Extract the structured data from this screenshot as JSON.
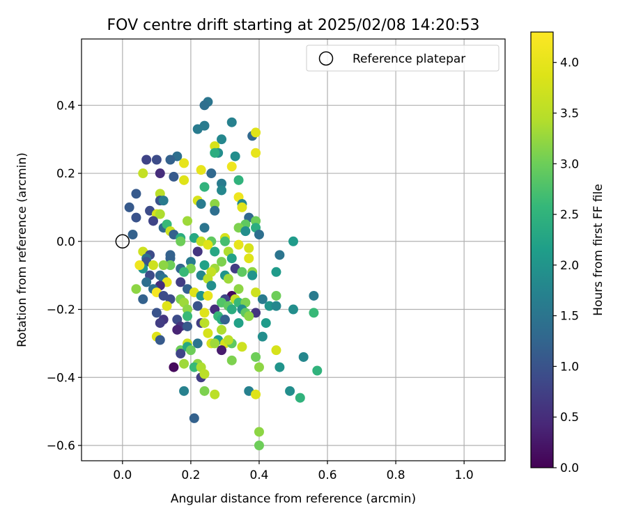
{
  "chart_data": {
    "type": "scatter",
    "title": "FOV centre drift starting at 2025/02/08 14:20:53",
    "xlabel": "Angular distance from reference (arcmin)",
    "ylabel": "Rotation from reference (arcmin)",
    "xlim": [
      -0.12,
      1.12
    ],
    "ylim": [
      -0.645,
      0.595
    ],
    "xticks": [
      0.0,
      0.2,
      0.4,
      0.6,
      0.8,
      1.0
    ],
    "xtick_labels": [
      "0.0",
      "0.2",
      "0.4",
      "0.6",
      "0.8",
      "1.0"
    ],
    "yticks": [
      -0.6,
      -0.4,
      -0.2,
      0.0,
      0.2,
      0.4
    ],
    "ytick_labels": [
      "−0.6",
      "−0.4",
      "−0.2",
      "0.0",
      "0.2",
      "0.4"
    ],
    "grid": true,
    "legend": {
      "position": "top-right",
      "label": "Reference platepar"
    },
    "reference_point": {
      "x": 0.0,
      "y": 0.0
    },
    "colorbar": {
      "label": "Hours from first FF file",
      "colormap": "viridis",
      "range": [
        0.0,
        4.3
      ],
      "ticks": [
        0.0,
        0.5,
        1.0,
        1.5,
        2.0,
        2.5,
        3.0,
        3.5,
        4.0
      ],
      "tick_labels": [
        "0.0",
        "0.5",
        "1.0",
        "1.5",
        "2.0",
        "2.5",
        "3.0",
        "3.5",
        "4.0"
      ]
    },
    "points": [
      [
        0.25,
        0.41,
        1.5
      ],
      [
        0.24,
        0.4,
        1.4
      ],
      [
        0.32,
        0.35,
        1.7
      ],
      [
        0.24,
        0.34,
        1.6
      ],
      [
        0.22,
        0.33,
        1.6
      ],
      [
        0.29,
        0.3,
        1.8
      ],
      [
        0.38,
        0.31,
        1.3
      ],
      [
        0.39,
        0.32,
        3.9
      ],
      [
        0.27,
        0.28,
        3.8
      ],
      [
        0.28,
        0.26,
        1.9
      ],
      [
        0.27,
        0.26,
        2.4
      ],
      [
        0.33,
        0.25,
        1.9
      ],
      [
        0.39,
        0.26,
        4.0
      ],
      [
        0.16,
        0.25,
        1.4
      ],
      [
        0.14,
        0.24,
        1.2
      ],
      [
        0.07,
        0.24,
        0.8
      ],
      [
        0.1,
        0.24,
        0.9
      ],
      [
        0.18,
        0.23,
        4.0
      ],
      [
        0.23,
        0.21,
        4.0
      ],
      [
        0.32,
        0.22,
        4.1
      ],
      [
        0.06,
        0.2,
        3.6
      ],
      [
        0.11,
        0.2,
        0.5
      ],
      [
        0.26,
        0.2,
        1.3
      ],
      [
        0.15,
        0.19,
        1.1
      ],
      [
        0.18,
        0.18,
        3.9
      ],
      [
        0.34,
        0.18,
        2.5
      ],
      [
        0.29,
        0.17,
        1.6
      ],
      [
        0.24,
        0.16,
        2.5
      ],
      [
        0.29,
        0.15,
        1.8
      ],
      [
        0.34,
        0.13,
        4.1
      ],
      [
        0.04,
        0.14,
        1.1
      ],
      [
        0.11,
        0.14,
        3.5
      ],
      [
        0.11,
        0.12,
        1.0
      ],
      [
        0.12,
        0.12,
        1.6
      ],
      [
        0.22,
        0.12,
        3.8
      ],
      [
        0.23,
        0.11,
        1.6
      ],
      [
        0.27,
        0.11,
        3.2
      ],
      [
        0.35,
        0.11,
        1.8
      ],
      [
        0.35,
        0.1,
        3.9
      ],
      [
        0.02,
        0.1,
        1.1
      ],
      [
        0.08,
        0.09,
        0.9
      ],
      [
        0.27,
        0.09,
        1.4
      ],
      [
        0.04,
        0.07,
        1.0
      ],
      [
        0.1,
        0.08,
        3.8
      ],
      [
        0.11,
        0.08,
        3.4
      ],
      [
        0.37,
        0.07,
        1.3
      ],
      [
        0.09,
        0.06,
        0.8
      ],
      [
        0.19,
        0.06,
        3.3
      ],
      [
        0.36,
        0.05,
        2.9
      ],
      [
        0.39,
        0.06,
        3.0
      ],
      [
        0.12,
        0.04,
        1.3
      ],
      [
        0.13,
        0.05,
        2.6
      ],
      [
        0.34,
        0.04,
        3.1
      ],
      [
        0.39,
        0.04,
        2.4
      ],
      [
        0.14,
        0.03,
        3.7
      ],
      [
        0.24,
        0.04,
        1.5
      ],
      [
        0.36,
        0.03,
        1.9
      ],
      [
        0.4,
        0.02,
        1.4
      ],
      [
        0.03,
        0.02,
        1.2
      ],
      [
        0.15,
        0.02,
        1.2
      ],
      [
        0.17,
        0.01,
        2.4
      ],
      [
        0.21,
        0.01,
        2.3
      ],
      [
        0.3,
        0.01,
        3.8
      ],
      [
        0.17,
        0.0,
        3.0
      ],
      [
        0.23,
        0.0,
        3.6
      ],
      [
        0.26,
        0.0,
        2.9
      ],
      [
        0.3,
        0.0,
        2.7
      ],
      [
        0.34,
        -0.01,
        4.0
      ],
      [
        0.5,
        0.0,
        2.1
      ],
      [
        0.25,
        -0.01,
        3.9
      ],
      [
        0.06,
        -0.03,
        3.7
      ],
      [
        0.08,
        -0.04,
        0.9
      ],
      [
        0.14,
        -0.04,
        1.2
      ],
      [
        0.22,
        -0.03,
        0.6
      ],
      [
        0.27,
        -0.03,
        2.3
      ],
      [
        0.31,
        -0.03,
        3.4
      ],
      [
        0.37,
        -0.02,
        3.8
      ],
      [
        0.46,
        -0.04,
        1.5
      ],
      [
        0.14,
        -0.05,
        1.2
      ],
      [
        0.32,
        -0.05,
        2.2
      ],
      [
        0.07,
        -0.05,
        1.4
      ],
      [
        0.07,
        -0.06,
        1.0
      ],
      [
        0.29,
        -0.06,
        3.1
      ],
      [
        0.09,
        -0.07,
        3.7
      ],
      [
        0.06,
        -0.08,
        2.0
      ],
      [
        0.14,
        -0.07,
        3.0
      ],
      [
        0.2,
        -0.06,
        1.6
      ],
      [
        0.24,
        -0.07,
        2.2
      ],
      [
        0.37,
        -0.05,
        3.9
      ],
      [
        0.12,
        -0.07,
        3.2
      ],
      [
        0.2,
        -0.08,
        3.1
      ],
      [
        0.27,
        -0.08,
        3.3
      ],
      [
        0.33,
        -0.08,
        0.7
      ],
      [
        0.05,
        -0.07,
        4.1
      ],
      [
        0.17,
        -0.08,
        1.3
      ],
      [
        0.26,
        -0.09,
        3.6
      ],
      [
        0.35,
        -0.09,
        2.9
      ],
      [
        0.38,
        -0.09,
        3.2
      ],
      [
        0.18,
        -0.09,
        2.6
      ],
      [
        0.08,
        -0.1,
        0.9
      ],
      [
        0.11,
        -0.1,
        1.3
      ],
      [
        0.12,
        -0.11,
        1.5
      ],
      [
        0.23,
        -0.1,
        1.8
      ],
      [
        0.3,
        -0.1,
        2.0
      ],
      [
        0.38,
        -0.1,
        2.0
      ],
      [
        0.45,
        -0.09,
        2.1
      ],
      [
        0.13,
        -0.12,
        4.0
      ],
      [
        0.25,
        -0.11,
        3.5
      ],
      [
        0.07,
        -0.12,
        1.4
      ],
      [
        0.11,
        -0.13,
        0.5
      ],
      [
        0.17,
        -0.12,
        0.7
      ],
      [
        0.31,
        -0.11,
        3.3
      ],
      [
        0.04,
        -0.14,
        3.2
      ],
      [
        0.09,
        -0.14,
        1.4
      ],
      [
        0.19,
        -0.14,
        1.2
      ],
      [
        0.26,
        -0.13,
        1.9
      ],
      [
        0.34,
        -0.14,
        3.2
      ],
      [
        0.21,
        -0.15,
        3.9
      ],
      [
        0.1,
        -0.15,
        4.2
      ],
      [
        0.12,
        -0.16,
        0.9
      ],
      [
        0.32,
        -0.16,
        0.1
      ],
      [
        0.39,
        -0.15,
        3.7
      ],
      [
        0.45,
        -0.16,
        3.0
      ],
      [
        0.23,
        -0.16,
        2.0
      ],
      [
        0.25,
        -0.16,
        4.0
      ],
      [
        0.41,
        -0.17,
        1.6
      ],
      [
        0.56,
        -0.16,
        1.6
      ],
      [
        0.06,
        -0.17,
        1.2
      ],
      [
        0.14,
        -0.17,
        0.9
      ],
      [
        0.17,
        -0.17,
        3.1
      ],
      [
        0.3,
        -0.17,
        0.8
      ],
      [
        0.33,
        -0.17,
        3.6
      ],
      [
        0.18,
        -0.18,
        3.3
      ],
      [
        0.29,
        -0.18,
        2.8
      ],
      [
        0.34,
        -0.18,
        2.6
      ],
      [
        0.36,
        -0.18,
        3.1
      ],
      [
        0.13,
        -0.19,
        3.9
      ],
      [
        0.22,
        -0.19,
        1.0
      ],
      [
        0.31,
        -0.19,
        2.9
      ],
      [
        0.43,
        -0.19,
        2.0
      ],
      [
        0.19,
        -0.2,
        3.2
      ],
      [
        0.27,
        -0.2,
        0.5
      ],
      [
        0.32,
        -0.2,
        2.4
      ],
      [
        0.35,
        -0.2,
        1.9
      ],
      [
        0.45,
        -0.19,
        1.8
      ],
      [
        0.5,
        -0.2,
        1.9
      ],
      [
        0.1,
        -0.21,
        1.0
      ],
      [
        0.19,
        -0.22,
        2.6
      ],
      [
        0.28,
        -0.22,
        2.6
      ],
      [
        0.36,
        -0.21,
        2.9
      ],
      [
        0.24,
        -0.21,
        3.9
      ],
      [
        0.39,
        -0.21,
        0.6
      ],
      [
        0.29,
        -0.23,
        2.4
      ],
      [
        0.37,
        -0.22,
        3.2
      ],
      [
        0.12,
        -0.23,
        0.6
      ],
      [
        0.16,
        -0.23,
        0.9
      ],
      [
        0.56,
        -0.21,
        2.6
      ],
      [
        0.11,
        -0.24,
        0.7
      ],
      [
        0.23,
        -0.24,
        0.7
      ],
      [
        0.3,
        -0.23,
        1.2
      ],
      [
        0.24,
        -0.24,
        3.5
      ],
      [
        0.34,
        -0.24,
        2.2
      ],
      [
        0.42,
        -0.24,
        2.1
      ],
      [
        0.17,
        -0.25,
        0.6
      ],
      [
        0.19,
        -0.25,
        1.1
      ],
      [
        0.16,
        -0.26,
        0.4
      ],
      [
        0.29,
        -0.26,
        3.4
      ],
      [
        0.25,
        -0.27,
        3.8
      ],
      [
        0.41,
        -0.28,
        1.9
      ],
      [
        0.1,
        -0.28,
        3.9
      ],
      [
        0.11,
        -0.29,
        1.1
      ],
      [
        0.28,
        -0.29,
        2.1
      ],
      [
        0.3,
        -0.3,
        3.8
      ],
      [
        0.32,
        -0.3,
        2.9
      ],
      [
        0.19,
        -0.3,
        3.7
      ],
      [
        0.22,
        -0.3,
        1.5
      ],
      [
        0.26,
        -0.3,
        3.8
      ],
      [
        0.31,
        -0.29,
        3.5
      ],
      [
        0.27,
        -0.3,
        3.3
      ],
      [
        0.35,
        -0.31,
        3.7
      ],
      [
        0.45,
        -0.32,
        3.8
      ],
      [
        0.17,
        -0.32,
        3.0
      ],
      [
        0.29,
        -0.32,
        0.3
      ],
      [
        0.19,
        -0.31,
        2.3
      ],
      [
        0.17,
        -0.33,
        0.8
      ],
      [
        0.2,
        -0.32,
        3.0
      ],
      [
        0.53,
        -0.34,
        1.8
      ],
      [
        0.32,
        -0.35,
        3.1
      ],
      [
        0.39,
        -0.34,
        3.0
      ],
      [
        0.22,
        -0.36,
        3.2
      ],
      [
        0.18,
        -0.36,
        3.3
      ],
      [
        0.15,
        -0.37,
        0.1
      ],
      [
        0.46,
        -0.37,
        2.0
      ],
      [
        0.21,
        -0.37,
        2.6
      ],
      [
        0.23,
        -0.37,
        3.4
      ],
      [
        0.4,
        -0.37,
        3.2
      ],
      [
        0.57,
        -0.38,
        2.5
      ],
      [
        0.23,
        -0.4,
        0.7
      ],
      [
        0.24,
        -0.39,
        3.5
      ],
      [
        0.18,
        -0.44,
        1.7
      ],
      [
        0.24,
        -0.44,
        3.1
      ],
      [
        0.27,
        -0.45,
        3.5
      ],
      [
        0.37,
        -0.44,
        1.7
      ],
      [
        0.39,
        -0.45,
        3.9
      ],
      [
        0.49,
        -0.44,
        1.9
      ],
      [
        0.52,
        -0.46,
        2.5
      ],
      [
        0.21,
        -0.52,
        1.2
      ],
      [
        0.4,
        -0.56,
        3.2
      ],
      [
        0.4,
        -0.6,
        3.0
      ]
    ]
  }
}
